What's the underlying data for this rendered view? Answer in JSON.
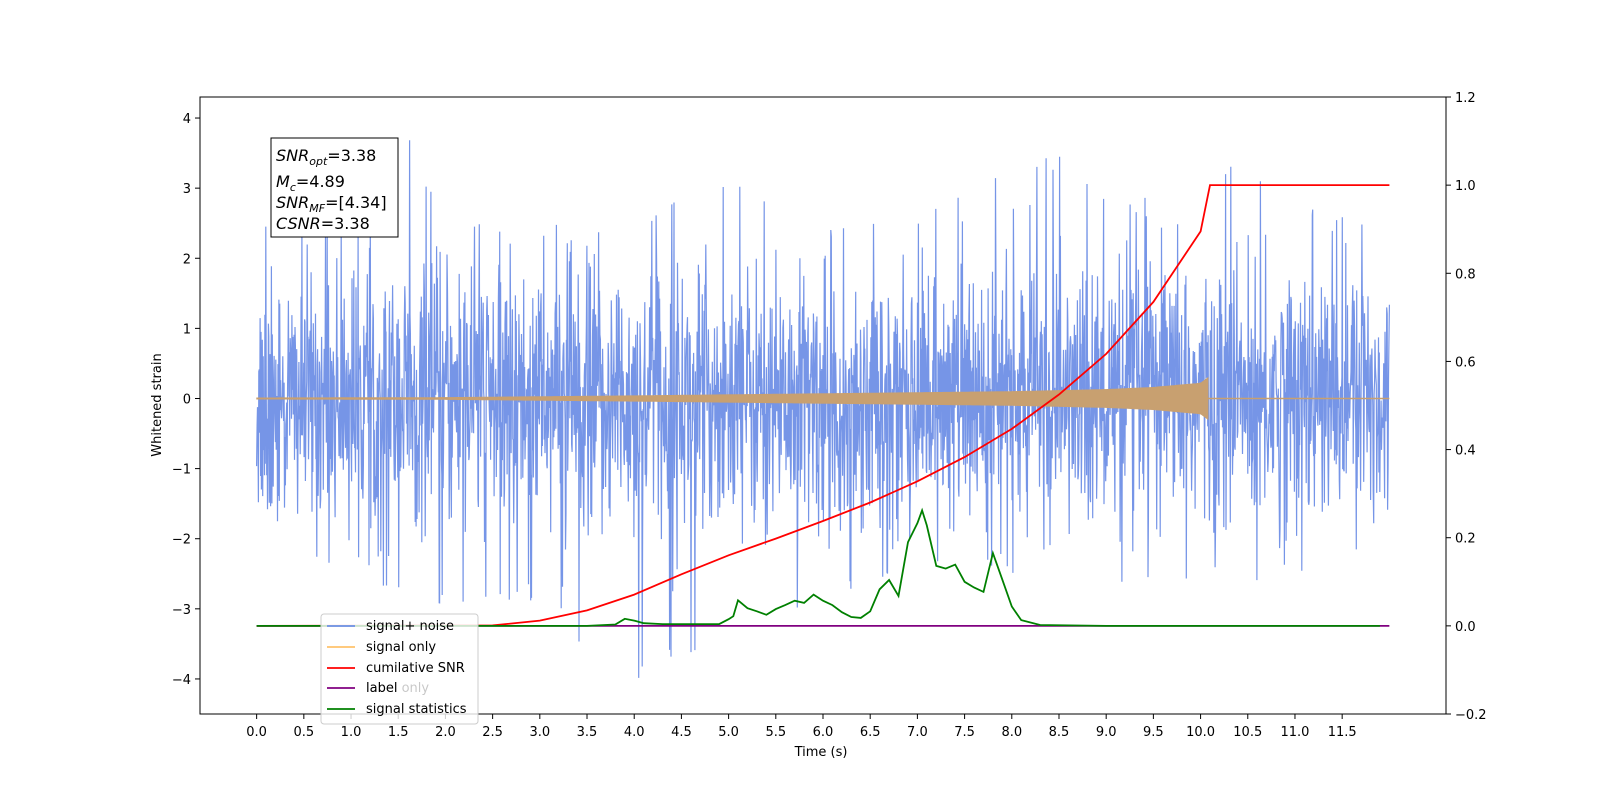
{
  "chart_data": {
    "type": "line",
    "xlabel": "Time (s)",
    "ylabel": "Whitened strain",
    "xlim": [
      -0.6,
      12.6
    ],
    "ylim": [
      -4.5,
      4.3
    ],
    "y2lim": [
      -0.2,
      1.2
    ],
    "x_ticks": [
      0.0,
      0.5,
      1.0,
      1.5,
      2.0,
      2.5,
      3.0,
      3.5,
      4.0,
      4.5,
      5.0,
      5.5,
      6.0,
      6.5,
      7.0,
      7.5,
      8.0,
      9.0,
      9.5,
      10.0,
      10.5,
      11.0,
      11.5
    ],
    "x_tick_labels": [
      "0.0",
      "0.5",
      "1.0",
      "1.5",
      "2.0",
      "2.5",
      "3.0",
      "3.5",
      "4.0",
      "4.5",
      "5.0",
      "5.5",
      "6.0",
      "6.5",
      "7.0",
      "7.5",
      "8.0",
      "9.0",
      "9.5",
      "10.0",
      "10.5",
      "11.0",
      "11.5"
    ],
    "extra_x_tick": {
      "value": 8.5,
      "label": "8.5"
    },
    "y_ticks": [
      4,
      3,
      2,
      1,
      0,
      -1,
      -2,
      -3,
      -4
    ],
    "y_tick_labels": [
      "4",
      "3",
      "2",
      "1",
      "0",
      "−1",
      "−2",
      "−3",
      "−4"
    ],
    "y2_ticks": [
      1.2,
      1.0,
      0.8,
      0.6,
      0.4,
      0.2,
      0.0,
      -0.2
    ],
    "y2_tick_labels": [
      "1.2",
      "1.0",
      "0.8",
      "0.6",
      "0.4",
      "0.2",
      "0.0",
      "−0.2"
    ],
    "stats_box": {
      "lines": [
        {
          "base": "SNR",
          "sub": "opt",
          "value": "=3.38"
        },
        {
          "base": "M",
          "sub": "c",
          "value": "=4.89"
        },
        {
          "base": "SNR",
          "sub": "MF",
          "value": "=[4.34]"
        },
        {
          "base": "CSNR",
          "sub": "",
          "value": "=3.38"
        }
      ]
    },
    "legend": {
      "position": "lower-left",
      "entries": [
        {
          "label": "signal+ noise",
          "color": "#6f8fe6"
        },
        {
          "label": "signal only",
          "color": "#ffc36b"
        },
        {
          "label": "cumilative SNR",
          "color": "#ff0000"
        },
        {
          "label": "label",
          "color": "#800080"
        },
        {
          "label": "signal statistics",
          "color": "#008000"
        }
      ],
      "hidden_text": [
        {
          "label": "label only",
          "behind_entry": 3
        }
      ]
    },
    "series": [
      {
        "name": "signal+ noise",
        "axis": "left",
        "color": "#6f8fe6",
        "x_range": [
          0.0,
          12.0
        ],
        "typical_amplitude": 1.5,
        "envelope": [
          [
            0.0,
            2.6,
            -1.5
          ],
          [
            1.0,
            2.6,
            -2.7
          ],
          [
            1.6,
            3.9,
            -3.0
          ],
          [
            2.0,
            2.5,
            -3.0
          ],
          [
            3.0,
            2.5,
            -2.9
          ],
          [
            3.8,
            2.4,
            -4.1
          ],
          [
            4.9,
            3.25,
            -3.65
          ],
          [
            6.0,
            2.5,
            -2.9
          ],
          [
            7.0,
            2.6,
            -2.5
          ],
          [
            8.0,
            3.3,
            -2.6
          ],
          [
            8.5,
            3.5,
            -2.8
          ],
          [
            9.0,
            3.0,
            -2.8
          ],
          [
            10.0,
            2.8,
            -2.6
          ],
          [
            10.4,
            3.7,
            -2.6
          ],
          [
            11.0,
            2.8,
            -2.7
          ],
          [
            12.0,
            2.4,
            -2.0
          ]
        ]
      },
      {
        "name": "signal only",
        "axis": "left",
        "color": "#c8a070",
        "x_range": [
          0.0,
          12.0
        ],
        "envelope": [
          [
            0.0,
            0.01
          ],
          [
            2.0,
            0.015
          ],
          [
            4.0,
            0.04
          ],
          [
            6.0,
            0.07
          ],
          [
            8.0,
            0.1
          ],
          [
            9.0,
            0.13
          ],
          [
            9.5,
            0.16
          ],
          [
            10.0,
            0.22
          ],
          [
            10.08,
            0.3
          ],
          [
            10.1,
            0.0
          ],
          [
            12.0,
            0.0
          ]
        ]
      },
      {
        "name": "cumilative SNR",
        "axis": "right",
        "color": "#ff0000",
        "x": [
          2.5,
          3.0,
          3.5,
          4.0,
          4.5,
          5.0,
          5.5,
          6.0,
          6.5,
          7.0,
          7.5,
          8.0,
          8.5,
          9.0,
          9.5,
          10.0,
          10.1,
          12.0
        ],
        "values": [
          0.001,
          0.012,
          0.035,
          0.071,
          0.117,
          0.16,
          0.198,
          0.238,
          0.28,
          0.328,
          0.383,
          0.447,
          0.525,
          0.617,
          0.735,
          0.895,
          1.0,
          1.0
        ]
      },
      {
        "name": "label",
        "axis": "right",
        "color": "#800080",
        "x": [
          0.0,
          12.0
        ],
        "values": [
          0.0,
          0.0
        ]
      },
      {
        "name": "signal statistics",
        "axis": "right",
        "color": "#008000",
        "x": [
          0.0,
          3.5,
          3.8,
          3.9,
          4.0,
          4.1,
          4.3,
          4.6,
          4.9,
          5.0,
          5.05,
          5.1,
          5.2,
          5.3,
          5.4,
          5.5,
          5.6,
          5.7,
          5.8,
          5.9,
          6.0,
          6.1,
          6.2,
          6.3,
          6.4,
          6.5,
          6.6,
          6.7,
          6.8,
          6.9,
          7.0,
          7.05,
          7.1,
          7.2,
          7.3,
          7.4,
          7.5,
          7.6,
          7.7,
          7.8,
          7.9,
          8.0,
          8.1,
          8.3,
          9.0,
          10.0,
          11.0,
          11.9
        ],
        "values": [
          0.0,
          0.0,
          0.003,
          0.016,
          0.012,
          0.006,
          0.004,
          0.004,
          0.004,
          0.015,
          0.022,
          0.058,
          0.04,
          0.033,
          0.025,
          0.038,
          0.047,
          0.057,
          0.052,
          0.071,
          0.057,
          0.047,
          0.031,
          0.02,
          0.018,
          0.033,
          0.083,
          0.104,
          0.068,
          0.19,
          0.233,
          0.262,
          0.228,
          0.136,
          0.13,
          0.139,
          0.1,
          0.087,
          0.077,
          0.165,
          0.105,
          0.044,
          0.013,
          0.002,
          0.0,
          0.0,
          0.0,
          0.0
        ]
      }
    ]
  }
}
